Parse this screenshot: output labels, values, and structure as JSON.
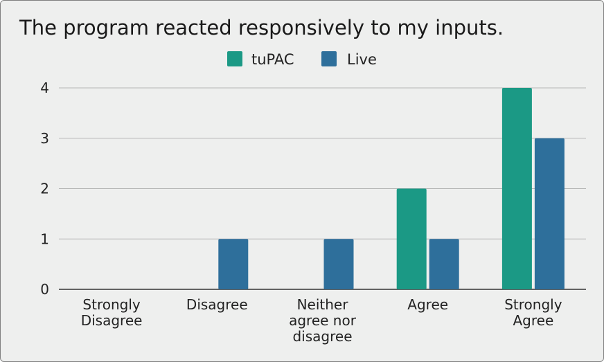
{
  "chart_data": {
    "type": "bar",
    "title": "The program reacted responsively to my inputs.",
    "categories": [
      [
        "Strongly",
        "Disagree"
      ],
      [
        "Disagree"
      ],
      [
        "Neither",
        "agree nor",
        "disagree"
      ],
      [
        "Agree"
      ],
      [
        "Strongly",
        "Agree"
      ]
    ],
    "series": [
      {
        "name": "tuPAC",
        "color": "#1b9985",
        "values": [
          0,
          0,
          0,
          2,
          4
        ]
      },
      {
        "name": "Live",
        "color": "#2e6f9b",
        "values": [
          0,
          1,
          1,
          1,
          3
        ]
      }
    ],
    "yticks": [
      0,
      1,
      2,
      3,
      4
    ],
    "ylim": [
      0,
      4
    ],
    "grid": true,
    "legend_position": "top-center"
  }
}
